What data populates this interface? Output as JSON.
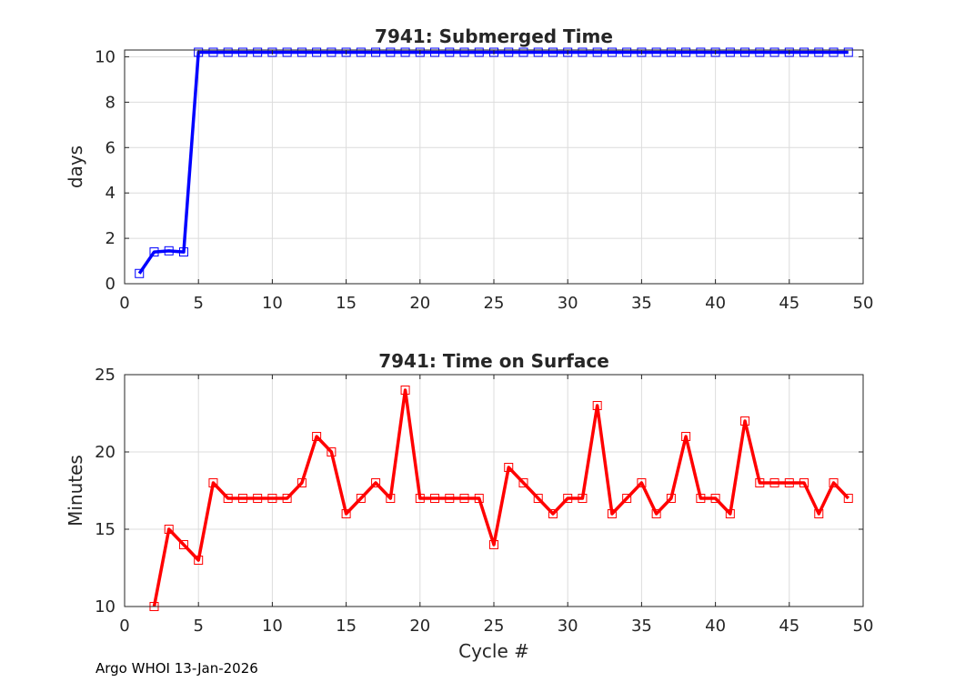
{
  "footer": "Argo WHOI 13-Jan-2026",
  "chart_data": [
    {
      "type": "line",
      "title": "7941: Submerged Time",
      "xlabel": "",
      "ylabel": "days",
      "xlim": [
        0,
        50
      ],
      "ylim": [
        0,
        10.3
      ],
      "xticks": [
        0,
        5,
        10,
        15,
        20,
        25,
        30,
        35,
        40,
        45,
        50
      ],
      "yticks": [
        0,
        2,
        4,
        6,
        8,
        10
      ],
      "grid": true,
      "color": "#0000ff",
      "marker": "square",
      "series": [
        {
          "name": "Submerged Time",
          "x": [
            1,
            2,
            3,
            4,
            5,
            6,
            7,
            8,
            9,
            10,
            11,
            12,
            13,
            14,
            15,
            16,
            17,
            18,
            19,
            20,
            21,
            22,
            23,
            24,
            25,
            26,
            27,
            28,
            29,
            30,
            31,
            32,
            33,
            34,
            35,
            36,
            37,
            38,
            39,
            40,
            41,
            42,
            43,
            44,
            45,
            46,
            47,
            48,
            49
          ],
          "y": [
            0.45,
            1.4,
            1.45,
            1.4,
            10.2,
            10.2,
            10.2,
            10.2,
            10.2,
            10.2,
            10.2,
            10.2,
            10.2,
            10.2,
            10.2,
            10.2,
            10.2,
            10.2,
            10.2,
            10.2,
            10.2,
            10.2,
            10.2,
            10.2,
            10.2,
            10.2,
            10.2,
            10.2,
            10.2,
            10.2,
            10.2,
            10.2,
            10.2,
            10.2,
            10.2,
            10.2,
            10.2,
            10.2,
            10.2,
            10.2,
            10.2,
            10.2,
            10.2,
            10.2,
            10.2,
            10.2,
            10.2,
            10.2,
            10.2
          ]
        }
      ]
    },
    {
      "type": "line",
      "title": "7941: Time on Surface",
      "xlabel": "Cycle #",
      "ylabel": "Minutes",
      "xlim": [
        0,
        50
      ],
      "ylim": [
        10,
        25
      ],
      "xticks": [
        0,
        5,
        10,
        15,
        20,
        25,
        30,
        35,
        40,
        45,
        50
      ],
      "yticks": [
        10,
        15,
        20,
        25
      ],
      "grid": true,
      "color": "#ff0000",
      "marker": "square",
      "series": [
        {
          "name": "Time on Surface",
          "x": [
            2,
            3,
            4,
            5,
            6,
            7,
            8,
            9,
            10,
            11,
            12,
            13,
            14,
            15,
            16,
            17,
            18,
            19,
            20,
            21,
            22,
            23,
            24,
            25,
            26,
            27,
            28,
            29,
            30,
            31,
            32,
            33,
            34,
            35,
            36,
            37,
            38,
            39,
            40,
            41,
            42,
            43,
            44,
            45,
            46,
            47,
            48,
            49
          ],
          "y": [
            10,
            15,
            14,
            13,
            18,
            17,
            17,
            17,
            17,
            17,
            18,
            21,
            20,
            16,
            17,
            18,
            17,
            24,
            17,
            17,
            17,
            17,
            17,
            14,
            19,
            18,
            17,
            16,
            17,
            17,
            23,
            16,
            17,
            18,
            16,
            17,
            21,
            17,
            17,
            16,
            22,
            18,
            18,
            18,
            18,
            16,
            18,
            17
          ]
        }
      ]
    }
  ]
}
